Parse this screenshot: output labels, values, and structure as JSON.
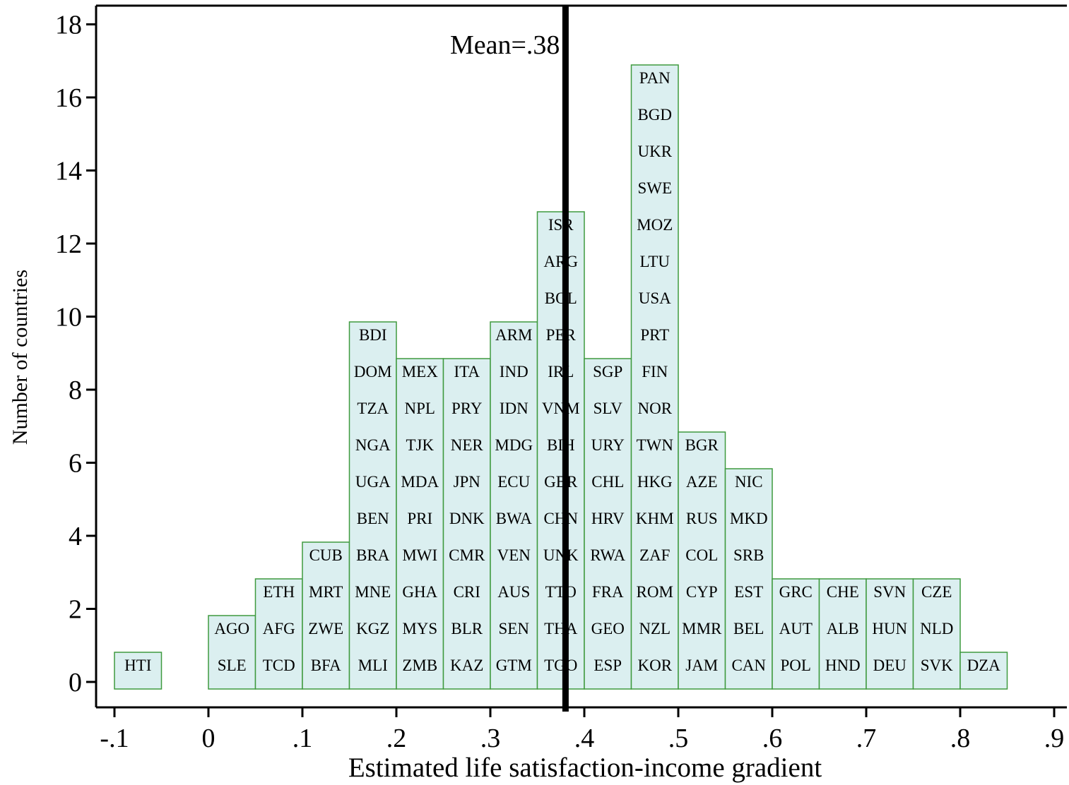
{
  "chart_data": {
    "type": "bar",
    "xlabel": "Estimated life satisfaction-income gradient",
    "ylabel": "Number of countries",
    "xlim": [
      -0.1,
      0.9
    ],
    "ylim": [
      0,
      18
    ],
    "x_ticks": [
      "-.1",
      "0",
      ".1",
      ".2",
      ".3",
      ".4",
      ".5",
      ".6",
      ".7",
      ".8",
      ".9"
    ],
    "x_tick_values": [
      -0.1,
      0,
      0.1,
      0.2,
      0.3,
      0.4,
      0.5,
      0.6,
      0.7,
      0.8,
      0.9
    ],
    "y_ticks": [
      "0",
      "2",
      "4",
      "6",
      "8",
      "10",
      "12",
      "14",
      "16",
      "18"
    ],
    "y_tick_values": [
      0,
      2,
      4,
      6,
      8,
      10,
      12,
      14,
      16,
      18
    ],
    "bin_width": 0.05,
    "bin_colors": {
      "fill": "#dbeff0",
      "stroke": "#3f9a3f"
    },
    "mean_line": {
      "value": 0.38,
      "label": "Mean=.38",
      "color": "#000000"
    },
    "bins": [
      {
        "start": -0.1,
        "count": 1,
        "countries": [
          "HTI"
        ]
      },
      {
        "start": 0.0,
        "count": 2,
        "countries": [
          "SLE",
          "AGO"
        ]
      },
      {
        "start": 0.05,
        "count": 3,
        "countries": [
          "TCD",
          "AFG",
          "ETH"
        ]
      },
      {
        "start": 0.1,
        "count": 4,
        "countries": [
          "BFA",
          "ZWE",
          "MRT",
          "CUB"
        ]
      },
      {
        "start": 0.15,
        "count": 10,
        "countries": [
          "MLI",
          "KGZ",
          "MNE",
          "BRA",
          "BEN",
          "UGA",
          "NGA",
          "TZA",
          "DOM",
          "BDI"
        ]
      },
      {
        "start": 0.2,
        "count": 9,
        "countries": [
          "ZMB",
          "MYS",
          "GHA",
          "MWI",
          "PRI",
          "MDA",
          "TJK",
          "NPL",
          "MEX"
        ]
      },
      {
        "start": 0.25,
        "count": 9,
        "countries": [
          "KAZ",
          "BLR",
          "CRI",
          "CMR",
          "DNK",
          "JPN",
          "NER",
          "PRY",
          "ITA"
        ]
      },
      {
        "start": 0.3,
        "count": 10,
        "countries": [
          "GTM",
          "SEN",
          "AUS",
          "VEN",
          "BWA",
          "ECU",
          "MDG",
          "IDN",
          "IND",
          "ARM"
        ]
      },
      {
        "start": 0.35,
        "count": 13,
        "countries": [
          "TGO",
          "THA",
          "TTO",
          "UNK",
          "CHN",
          "GBR",
          "BIH",
          "VNM",
          "IRL",
          "PER",
          "BOL",
          "ARG",
          "ISR"
        ]
      },
      {
        "start": 0.4,
        "count": 9,
        "countries": [
          "ESP",
          "GEO",
          "FRA",
          "RWA",
          "HRV",
          "CHL",
          "URY",
          "SLV",
          "SGP"
        ]
      },
      {
        "start": 0.45,
        "count": 17,
        "countries": [
          "KOR",
          "NZL",
          "ROM",
          "ZAF",
          "KHM",
          "HKG",
          "TWN",
          "NOR",
          "FIN",
          "PRT",
          "USA",
          "LTU",
          "MOZ",
          "SWE",
          "UKR",
          "BGD",
          "PAN"
        ]
      },
      {
        "start": 0.5,
        "count": 7,
        "countries": [
          "JAM",
          "MMR",
          "CYP",
          "COL",
          "RUS",
          "AZE",
          "BGR"
        ]
      },
      {
        "start": 0.55,
        "count": 6,
        "countries": [
          "CAN",
          "BEL",
          "EST",
          "SRB",
          "MKD",
          "NIC"
        ]
      },
      {
        "start": 0.6,
        "count": 3,
        "countries": [
          "POL",
          "AUT",
          "GRC"
        ]
      },
      {
        "start": 0.65,
        "count": 3,
        "countries": [
          "HND",
          "ALB",
          "CHE"
        ]
      },
      {
        "start": 0.7,
        "count": 3,
        "countries": [
          "DEU",
          "HUN",
          "SVN"
        ]
      },
      {
        "start": 0.75,
        "count": 3,
        "countries": [
          "SVK",
          "NLD",
          "CZE"
        ]
      },
      {
        "start": 0.8,
        "count": 1,
        "countries": [
          "DZA"
        ]
      }
    ]
  }
}
